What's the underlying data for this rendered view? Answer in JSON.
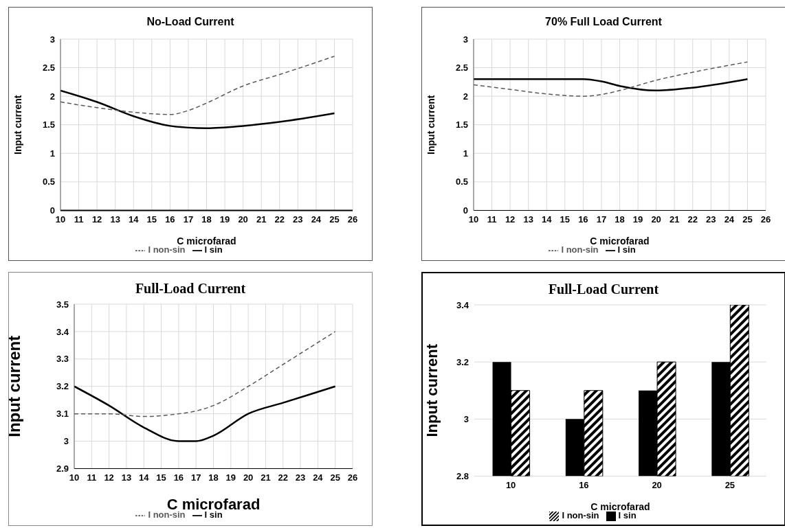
{
  "chart_data": [
    {
      "type": "line",
      "title": "No-Load Current",
      "xlabel": "C microfarad",
      "ylabel": "Input current",
      "x": [
        10,
        12,
        14,
        16,
        17,
        18,
        20,
        22,
        25
      ],
      "xlim": [
        10,
        26
      ],
      "xticks": [
        10,
        11,
        12,
        13,
        14,
        15,
        16,
        17,
        18,
        19,
        20,
        21,
        22,
        23,
        24,
        25,
        26
      ],
      "ylim": [
        0,
        3
      ],
      "yticks": [
        0,
        0.5,
        1,
        1.5,
        2,
        2.5,
        3
      ],
      "grid": true,
      "legend": "bottom",
      "series": [
        {
          "name": "I sin",
          "color": "#000000",
          "line_style": "solid",
          "values": [
            2.1,
            1.9,
            1.65,
            1.48,
            1.45,
            1.44,
            1.48,
            1.55,
            1.7
          ]
        },
        {
          "name": "I non-sin",
          "color": "#595959",
          "line_style": "dashed",
          "values": [
            1.9,
            1.8,
            1.72,
            1.68,
            1.75,
            1.88,
            2.18,
            2.38,
            2.7
          ]
        }
      ]
    },
    {
      "type": "line",
      "title": "70% Full Load Current",
      "xlabel": "C microfarad",
      "ylabel": "Input current",
      "x": [
        10,
        12,
        14,
        16,
        17,
        18,
        20,
        22,
        25
      ],
      "xlim": [
        10,
        26
      ],
      "xticks": [
        10,
        11,
        12,
        13,
        14,
        15,
        16,
        17,
        18,
        19,
        20,
        21,
        22,
        23,
        24,
        25,
        26
      ],
      "ylim": [
        0,
        3
      ],
      "yticks": [
        0,
        0.5,
        1,
        1.5,
        2,
        2.5,
        3
      ],
      "grid": true,
      "legend": "bottom",
      "series": [
        {
          "name": "I sin",
          "color": "#000000",
          "line_style": "solid",
          "values": [
            2.3,
            2.3,
            2.3,
            2.3,
            2.26,
            2.18,
            2.1,
            2.15,
            2.3
          ]
        },
        {
          "name": "I non-sin",
          "color": "#595959",
          "line_style": "dashed",
          "values": [
            2.2,
            2.12,
            2.04,
            2.0,
            2.03,
            2.1,
            2.28,
            2.42,
            2.6
          ]
        }
      ]
    },
    {
      "type": "line",
      "title": "Full-Load Current",
      "xlabel": "C microfarad",
      "ylabel": "Input current",
      "x": [
        10,
        12,
        14,
        16,
        17,
        18,
        20,
        22,
        25
      ],
      "xlim": [
        10,
        26
      ],
      "xticks": [
        10,
        11,
        12,
        13,
        14,
        15,
        16,
        17,
        18,
        19,
        20,
        21,
        22,
        23,
        24,
        25,
        26
      ],
      "ylim": [
        2.9,
        3.5
      ],
      "yticks": [
        2.9,
        3,
        3.1,
        3.2,
        3.3,
        3.4,
        3.5
      ],
      "grid": true,
      "legend": "bottom",
      "series": [
        {
          "name": "I sin",
          "color": "#000000",
          "line_style": "solid",
          "values": [
            3.2,
            3.13,
            3.05,
            3.0,
            3.0,
            3.02,
            3.1,
            3.14,
            3.2
          ]
        },
        {
          "name": "I non-sin",
          "color": "#595959",
          "line_style": "dashed",
          "values": [
            3.1,
            3.1,
            3.09,
            3.1,
            3.11,
            3.13,
            3.2,
            3.28,
            3.4
          ]
        }
      ]
    },
    {
      "type": "bar",
      "title": "Full-Load Current",
      "xlabel": "C microfarad",
      "ylabel": "Input current",
      "categories": [
        "10",
        "16",
        "20",
        "25"
      ],
      "ylim": [
        2.8,
        3.4
      ],
      "yticks": [
        2.8,
        3,
        3.2,
        3.4
      ],
      "grid": "y",
      "legend": "bottom",
      "series": [
        {
          "name": "I sin",
          "color": "#000000",
          "values": [
            3.2,
            3.0,
            3.1,
            3.2
          ]
        },
        {
          "name": "I non-sin",
          "color": "#000000",
          "values": [
            3.1,
            3.1,
            3.2,
            3.4
          ]
        }
      ]
    }
  ]
}
